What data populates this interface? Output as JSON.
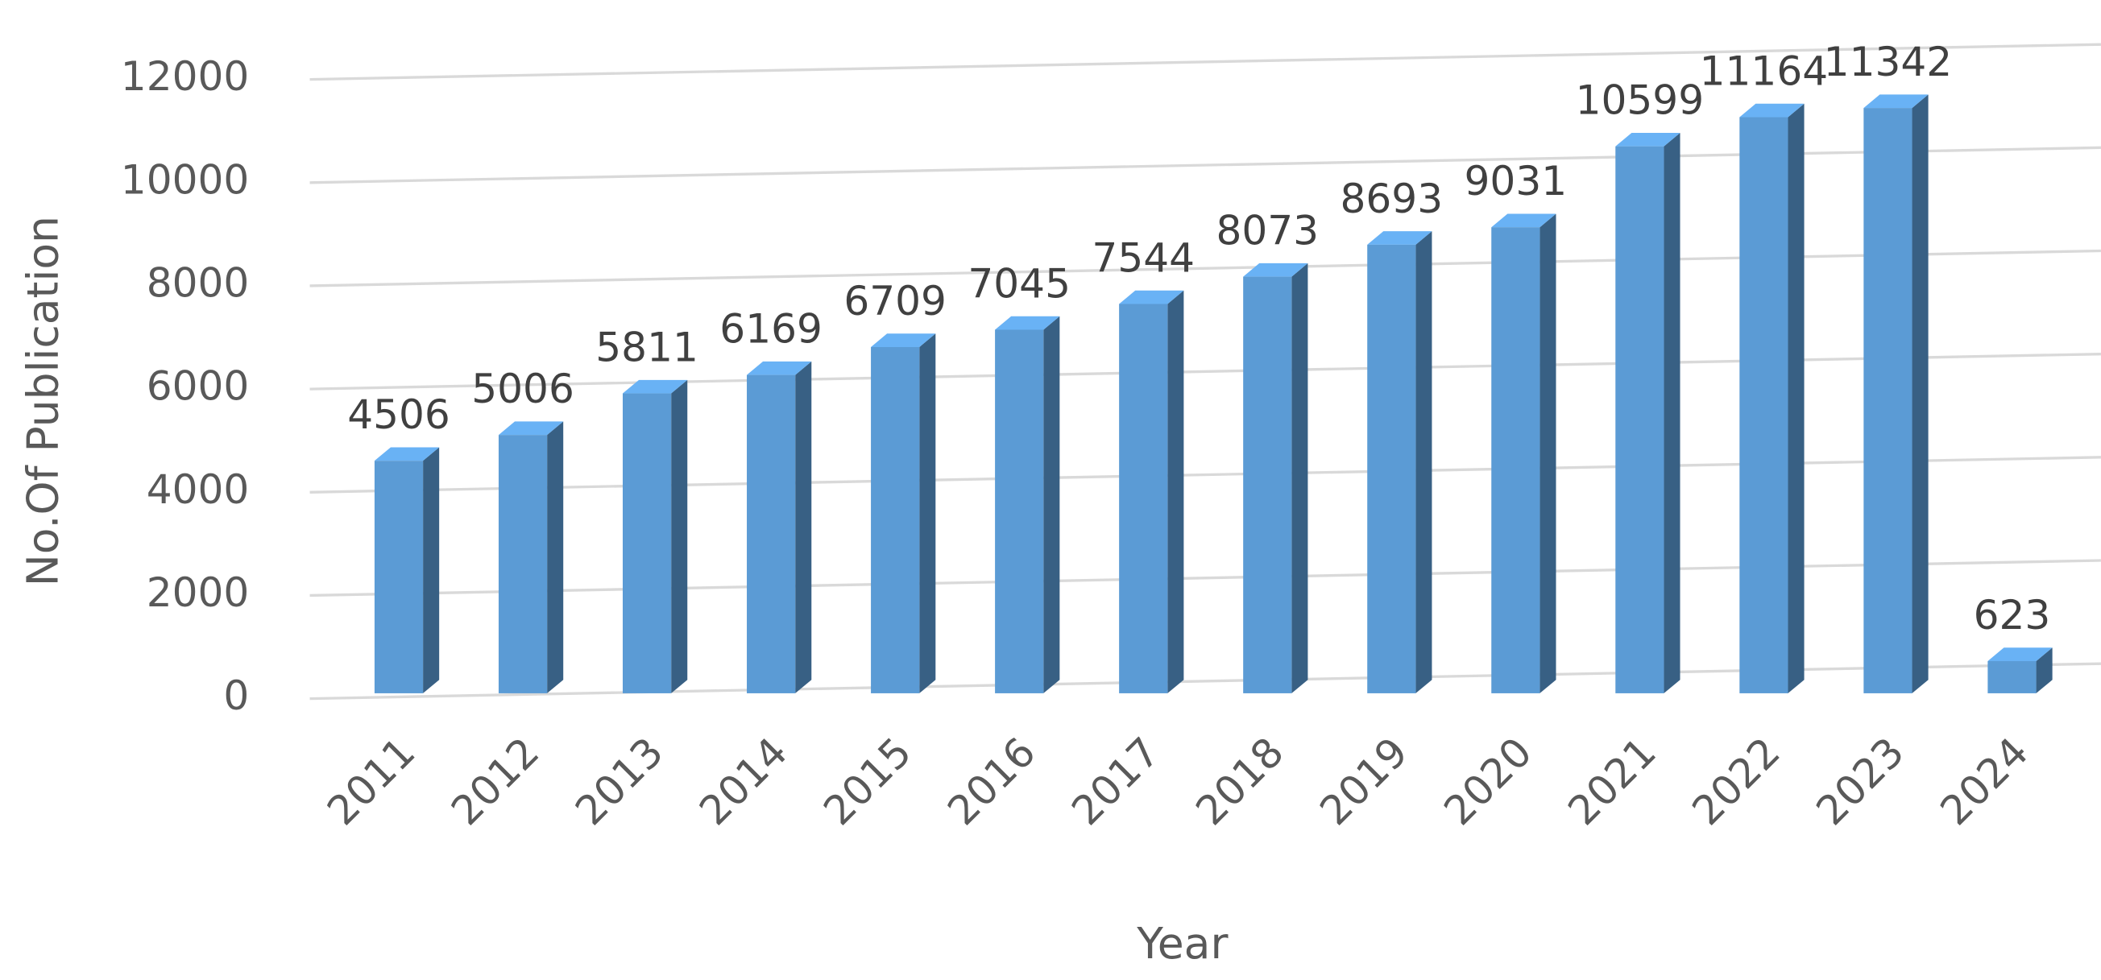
{
  "chart_data": {
    "type": "bar",
    "x_label": "Year",
    "y_label": "No.Of Publication",
    "categories": [
      "2011",
      "2012",
      "2013",
      "2014",
      "2015",
      "2016",
      "2017",
      "2018",
      "2019",
      "2020",
      "2021",
      "2022",
      "2023",
      "2024"
    ],
    "values": [
      4506,
      5006,
      5811,
      6169,
      6709,
      7045,
      7544,
      8073,
      8693,
      9031,
      10599,
      11164,
      11342,
      623
    ],
    "color": "#5b9bd5",
    "ylim": [
      0,
      12000
    ],
    "yticks": [
      0,
      2000,
      4000,
      6000,
      8000,
      10000,
      12000
    ],
    "grid": true
  }
}
